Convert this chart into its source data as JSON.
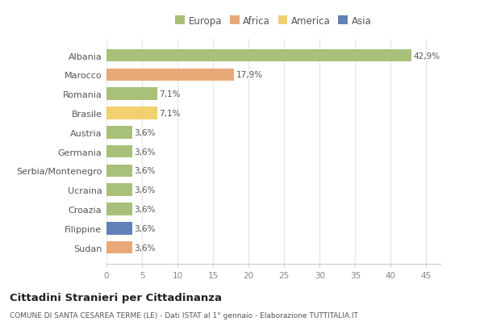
{
  "countries": [
    "Albania",
    "Marocco",
    "Romania",
    "Brasile",
    "Austria",
    "Germania",
    "Serbia/Montenegro",
    "Ucraina",
    "Croazia",
    "Filippine",
    "Sudan"
  ],
  "values": [
    42.9,
    17.9,
    7.1,
    7.1,
    3.6,
    3.6,
    3.6,
    3.6,
    3.6,
    3.6,
    3.6
  ],
  "labels": [
    "42,9%",
    "17,9%",
    "7,1%",
    "7,1%",
    "3,6%",
    "3,6%",
    "3,6%",
    "3,6%",
    "3,6%",
    "3,6%",
    "3,6%"
  ],
  "colors": [
    "#a8c07a",
    "#e8a878",
    "#a8c07a",
    "#f0d070",
    "#a8c07a",
    "#a8c07a",
    "#a8c07a",
    "#a8c07a",
    "#a8c07a",
    "#6080b8",
    "#e8a878"
  ],
  "legend_labels": [
    "Europa",
    "Africa",
    "America",
    "Asia"
  ],
  "legend_colors": [
    "#a8c07a",
    "#e8a878",
    "#f0d070",
    "#6080b8"
  ],
  "title": "Cittadini Stranieri per Cittadinanza",
  "subtitle": "COMUNE DI SANTA CESAREA TERME (LE) - Dati ISTAT al 1° gennaio - Elaborazione TUTTITALIA.IT",
  "xlim": [
    0,
    47
  ],
  "xticks": [
    0,
    5,
    10,
    15,
    20,
    25,
    30,
    35,
    40,
    45
  ],
  "bg_color": "#ffffff",
  "grid_color": "#e8e8e8",
  "bar_height": 0.65
}
